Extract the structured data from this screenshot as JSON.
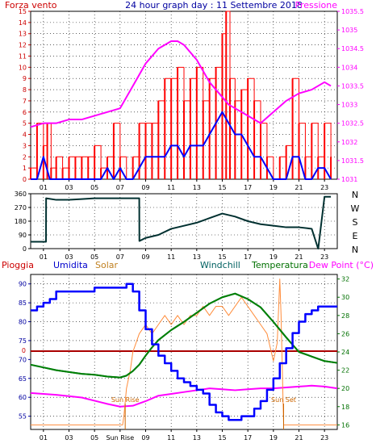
{
  "colors": {
    "wind": "#ff0000",
    "wind_avg": "#0000ff",
    "pressure": "#ff00ff",
    "direction": "#003030",
    "humidity": "#0000ff",
    "solar": "#ff8c3a",
    "windchill": "#007070",
    "temperature": "#008000",
    "dew_point": "#ff00ff",
    "rain": "#aa0000",
    "sun_marker": "#cc6600",
    "frame": "#000000",
    "grid": "#000000"
  },
  "chart_data": [
    {
      "type": "line",
      "title": "24 hour graph day : 11 Settembre 2018",
      "labels": {
        "left": "Forza vento",
        "right": "Pressione"
      },
      "x_ticks": [
        "01",
        "03",
        "05",
        "07",
        "09",
        "11",
        "13",
        "15",
        "17",
        "19",
        "21",
        "23"
      ],
      "xlim": [
        0,
        24
      ],
      "y_left": {
        "ylim": [
          0,
          15
        ],
        "ticks": [
          "0",
          "1",
          "2",
          "3",
          "4",
          "5",
          "6",
          "7",
          "8",
          "9",
          "10",
          "11",
          "12",
          "13",
          "14",
          "15"
        ]
      },
      "y_right": {
        "ylim": [
          1031,
          1035.5
        ],
        "ticks": [
          "1031",
          "1031.5",
          "1032",
          "1032.5",
          "1033",
          "1033.5",
          "1034",
          "1034.5",
          "1035",
          "1035.5"
        ]
      },
      "series": [
        {
          "key": "gust",
          "axis": "left",
          "x": [
            0,
            0.5,
            1,
            1.3,
            1.6,
            2,
            2.5,
            3,
            3.5,
            4,
            4.5,
            5,
            5.5,
            6,
            6.5,
            7,
            7.5,
            8,
            8.5,
            9,
            9.5,
            10,
            10.5,
            11,
            11.5,
            12,
            12.5,
            13,
            13.5,
            14,
            14.5,
            15,
            15.3,
            15.6,
            16,
            16.5,
            17,
            17.5,
            18,
            18.5,
            19,
            19.5,
            20,
            20.5,
            21,
            21.5,
            22,
            22.5,
            23,
            23.5
          ],
          "y": [
            1,
            5,
            3,
            5,
            1,
            2,
            1,
            2,
            2,
            2,
            2,
            3,
            1,
            2,
            5,
            2,
            0,
            2,
            5,
            5,
            5,
            7,
            9,
            9,
            10,
            7,
            9,
            10,
            7,
            9,
            10,
            13,
            15,
            9,
            7,
            8,
            9,
            7,
            5,
            2,
            0,
            2,
            3,
            9,
            5,
            2,
            5,
            2,
            5,
            2
          ]
        },
        {
          "key": "wind_avg",
          "axis": "left",
          "x": [
            0,
            0.5,
            1,
            1.5,
            2,
            3,
            4,
            5,
            5.5,
            6,
            6.5,
            7,
            7.5,
            8,
            8.5,
            9,
            9.5,
            10,
            10.5,
            11,
            11.5,
            12,
            12.5,
            13,
            13.5,
            14,
            14.5,
            15,
            15.5,
            16,
            16.5,
            17,
            17.5,
            18,
            18.5,
            19,
            19.5,
            20,
            20.5,
            21,
            21.5,
            22,
            22.5,
            23,
            23.5
          ],
          "y": [
            0,
            0,
            2,
            0,
            0,
            0,
            0,
            0,
            0,
            1,
            0,
            1,
            0,
            0,
            1,
            2,
            2,
            2,
            2,
            3,
            3,
            2,
            3,
            3,
            3,
            4,
            5,
            6,
            5,
            4,
            4,
            3,
            2,
            2,
            1,
            0,
            0,
            0,
            2,
            2,
            0,
            0,
            1,
            1,
            0
          ]
        },
        {
          "key": "pressure",
          "axis": "right",
          "x": [
            0,
            1,
            2,
            3,
            4,
            5,
            6,
            7,
            7.5,
            8,
            8.5,
            9,
            9.5,
            10,
            10.5,
            11,
            11.5,
            12,
            12.5,
            13,
            13.5,
            14,
            14.5,
            15,
            15.5,
            16,
            17,
            18,
            19,
            20,
            21,
            22,
            23,
            23.5
          ],
          "y": [
            1032.4,
            1032.5,
            1032.5,
            1032.6,
            1032.6,
            1032.7,
            1032.8,
            1032.9,
            1033.2,
            1033.5,
            1033.8,
            1034.1,
            1034.3,
            1034.5,
            1034.6,
            1034.7,
            1034.7,
            1034.6,
            1034.4,
            1034.2,
            1033.9,
            1033.6,
            1033.4,
            1033.2,
            1033.0,
            1032.9,
            1032.7,
            1032.5,
            1032.8,
            1033.1,
            1033.3,
            1033.4,
            1033.6,
            1033.5
          ]
        }
      ]
    },
    {
      "type": "line",
      "labels": {
        "right": [
          "N",
          "W",
          "S",
          "E",
          "N"
        ]
      },
      "x_ticks": [
        "01",
        "03",
        "05",
        "07",
        "09",
        "11",
        "13",
        "15",
        "17",
        "19",
        "21",
        "23"
      ],
      "xlim": [
        0,
        24
      ],
      "ylim": [
        0,
        360
      ],
      "y_ticks": [
        "0",
        "90",
        "180",
        "270",
        "360"
      ],
      "series": [
        {
          "key": "direction",
          "x": [
            0,
            1.2,
            1.21,
            2,
            3,
            4,
            5,
            6,
            7,
            7.5,
            8.5,
            8.51,
            9,
            10,
            11,
            12,
            13,
            14,
            15,
            16,
            17,
            18,
            19,
            20,
            21,
            22,
            22.5,
            22.51,
            23,
            23.5
          ],
          "y": [
            45,
            45,
            330,
            320,
            320,
            325,
            330,
            330,
            330,
            330,
            330,
            50,
            70,
            90,
            130,
            150,
            170,
            200,
            230,
            210,
            180,
            160,
            150,
            140,
            140,
            130,
            0,
            0,
            340,
            340
          ]
        }
      ]
    },
    {
      "type": "line",
      "labels": {
        "rain": "Pioggia",
        "humidity": "Umidita",
        "solar": "Solar",
        "windchill": "Windchill",
        "temperature": "Temperatura",
        "dew_point": "Dew Point (°C)"
      },
      "x_ticks": [
        "01",
        "03",
        "05",
        "Sun Rise",
        "09",
        "11",
        "13",
        "15",
        "17",
        "19",
        "21",
        "23"
      ],
      "xlim": [
        0,
        24
      ],
      "y_left": {
        "ylim": [
          51.5,
          92.5
        ],
        "ticks": [
          "55",
          "60",
          "65",
          "70",
          "75",
          "80",
          "85",
          "90"
        ]
      },
      "y_right": {
        "ylim": [
          15.5,
          32.5
        ],
        "ticks": [
          "16",
          "18",
          "20",
          "22",
          "24",
          "26",
          "28",
          "30",
          "32"
        ]
      },
      "rain_value": "0",
      "sun_rise": {
        "label": "Sun Rise",
        "x": 7.4
      },
      "sun_set": {
        "label": "Sun Set",
        "x": 19.8
      },
      "series": [
        {
          "key": "humidity",
          "axis": "left",
          "x": [
            0,
            0.5,
            1,
            1.5,
            2,
            3,
            4,
            5,
            6,
            7,
            7.5,
            8,
            8.5,
            9,
            9.5,
            10,
            10.5,
            11,
            11.5,
            12,
            12.5,
            13,
            13.5,
            14,
            14.5,
            15,
            15.5,
            16,
            16.5,
            17,
            17.5,
            18,
            18.5,
            19,
            19.5,
            20,
            20.5,
            21,
            21.5,
            22,
            22.5,
            23,
            24
          ],
          "y": [
            83,
            84,
            85,
            86,
            88,
            88,
            88,
            89,
            89,
            89,
            90,
            88,
            83,
            78,
            74,
            71,
            69,
            67,
            65,
            64,
            63,
            62,
            61,
            58,
            56,
            55,
            54,
            54,
            55,
            55,
            57,
            59,
            62,
            65,
            69,
            73,
            77,
            80,
            82,
            83,
            84,
            84,
            84
          ]
        },
        {
          "key": "solar",
          "axis": "right",
          "x": [
            0,
            7.2,
            7.3,
            7.5,
            7.8,
            8,
            8.5,
            9,
            9.5,
            10,
            10.5,
            11,
            11.5,
            12,
            12.5,
            13,
            13.5,
            14,
            14.5,
            15,
            15.5,
            16,
            16.5,
            17,
            17.5,
            18,
            18.5,
            19,
            19.3,
            19.5,
            19.6,
            19.8,
            19.9,
            20,
            24
          ],
          "y": [
            16,
            16,
            17,
            20,
            22,
            24,
            26,
            27,
            26,
            27,
            28,
            27,
            28,
            27,
            28,
            28,
            29,
            28,
            29,
            29,
            28,
            29,
            30,
            29,
            28,
            27,
            26,
            23,
            25,
            32,
            28,
            16,
            16,
            16,
            16
          ]
        },
        {
          "key": "windchill",
          "axis": "right",
          "x": [
            0,
            1,
            2,
            3,
            4,
            5,
            6,
            7,
            7.5,
            8,
            8.5,
            9,
            9.5,
            10,
            11,
            12,
            13,
            14,
            15,
            16,
            17,
            18,
            19,
            20,
            21,
            22,
            23,
            24
          ],
          "y": [
            22.6,
            22.3,
            22,
            21.8,
            21.6,
            21.5,
            21.3,
            21.2,
            21.4,
            21.9,
            22.6,
            23.6,
            24.5,
            25.3,
            26.4,
            27.3,
            28.3,
            29.3,
            30,
            30.4,
            29.8,
            28.9,
            27.3,
            25.6,
            24,
            23.5,
            23,
            22.8
          ]
        },
        {
          "key": "temperature",
          "axis": "right",
          "x": [
            0,
            1,
            2,
            3,
            4,
            5,
            6,
            7,
            7.5,
            8,
            8.5,
            9,
            9.5,
            10,
            11,
            12,
            13,
            14,
            15,
            16,
            17,
            18,
            19,
            20,
            21,
            22,
            23,
            24
          ],
          "y": [
            22.6,
            22.3,
            22,
            21.8,
            21.6,
            21.5,
            21.3,
            21.2,
            21.4,
            21.9,
            22.6,
            23.6,
            24.5,
            25.3,
            26.4,
            27.3,
            28.3,
            29.3,
            30,
            30.4,
            29.8,
            28.9,
            27.3,
            25.6,
            24,
            23.5,
            23,
            22.8
          ]
        },
        {
          "key": "dew_point",
          "axis": "right",
          "x": [
            0,
            2,
            4,
            6,
            7,
            8,
            9,
            10,
            11,
            12,
            13,
            14,
            15,
            16,
            17,
            18,
            19,
            20,
            21,
            22,
            23,
            24
          ],
          "y": [
            19.5,
            19.3,
            19,
            18.3,
            18,
            18.1,
            18.6,
            19.2,
            19.4,
            19.6,
            19.8,
            20,
            19.9,
            19.8,
            19.9,
            20,
            20,
            20.1,
            20.2,
            20.3,
            20.2,
            20
          ]
        }
      ]
    }
  ]
}
